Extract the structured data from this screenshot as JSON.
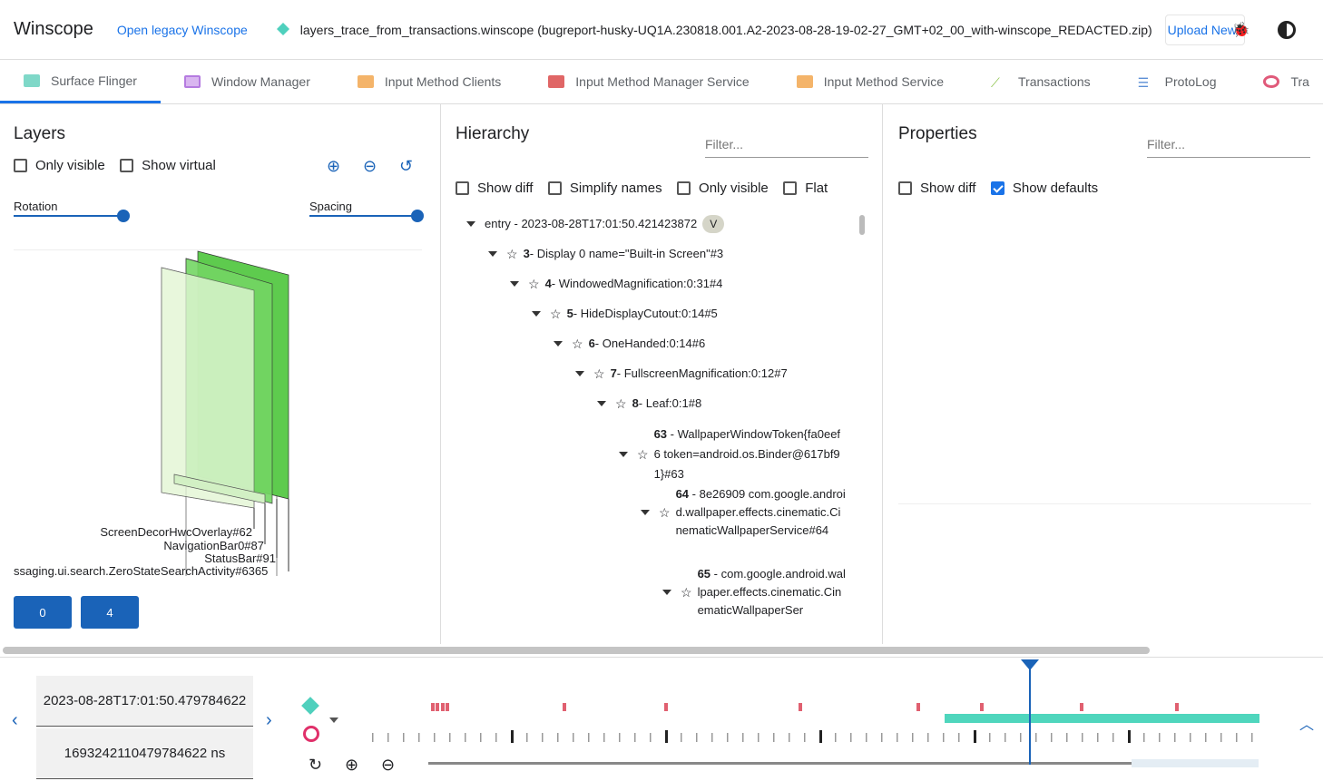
{
  "header": {
    "title": "Winscope",
    "legacy_link": "Open legacy Winscope",
    "trace_file": "layers_trace_from_transactions.winscope (bugreport-husky-UQ1A.230818.001.A2-2023-08-28-19-02-27_GMT+02_00_with-winscope_REDACTED.zip)",
    "upload_label": "Upload New"
  },
  "tabs": [
    {
      "label": "Surface Flinger",
      "color": "#7fd8c8"
    },
    {
      "label": "Window Manager",
      "color": "#b57be0"
    },
    {
      "label": "Input Method Clients",
      "color": "#f4b46a"
    },
    {
      "label": "Input Method Manager Service",
      "color": "#e06666"
    },
    {
      "label": "Input Method Service",
      "color": "#f4b46a"
    },
    {
      "label": "Transactions",
      "color": "#8bc34a"
    },
    {
      "label": "ProtoLog",
      "color": "#5c8fd6"
    },
    {
      "label": "Tra",
      "color": "#e05a7a"
    }
  ],
  "layers": {
    "title": "Layers",
    "only_visible": "Only visible",
    "show_virtual": "Show virtual",
    "rotation": "Rotation",
    "spacing": "Spacing",
    "labels": [
      "ScreenDecorHwcOverlay#62",
      "NavigationBar0#87",
      "StatusBar#91",
      "ssaging.ui.search.ZeroStateSearchActivity#6365"
    ],
    "display_buttons": [
      "0",
      "4"
    ]
  },
  "hierarchy": {
    "title": "Hierarchy",
    "filter_placeholder": "Filter...",
    "options": [
      "Show diff",
      "Simplify names",
      "Only visible",
      "Flat"
    ],
    "nodes": [
      {
        "text": "entry - 2023-08-28T17:01:50.421423872",
        "badge": "V"
      },
      {
        "id": "3",
        "text": " - Display 0 name=\"Built-in Screen\"#3"
      },
      {
        "id": "4",
        "text": " - WindowedMagnification:0:31#4"
      },
      {
        "id": "5",
        "text": " - HideDisplayCutout:0:14#5"
      },
      {
        "id": "6",
        "text": " - OneHanded:0:14#6"
      },
      {
        "id": "7",
        "text": " - FullscreenMagnification:0:12#7"
      },
      {
        "id": "8",
        "text": " - Leaf:0:1#8"
      },
      {
        "id": "63",
        "text": " - WallpaperWindowToken{fa0eef6 token=android.os.Binder@617bf91}#63"
      },
      {
        "id": "64",
        "text": " - 8e26909 com.google.android.wallpaper.effects.cinematic.CinematicWallpaperService#64"
      },
      {
        "id": "65",
        "text": " - com.google.android.wallpaper.effects.cinematic.CinematicWallpaperSer"
      }
    ]
  },
  "properties": {
    "title": "Properties",
    "filter_placeholder": "Filter...",
    "show_diff": "Show diff",
    "show_defaults": "Show defaults",
    "show_defaults_checked": true
  },
  "timeline": {
    "timestamp": "2023-08-28T17:01:50.479784622",
    "ns": "1693242110479784622 ns"
  }
}
